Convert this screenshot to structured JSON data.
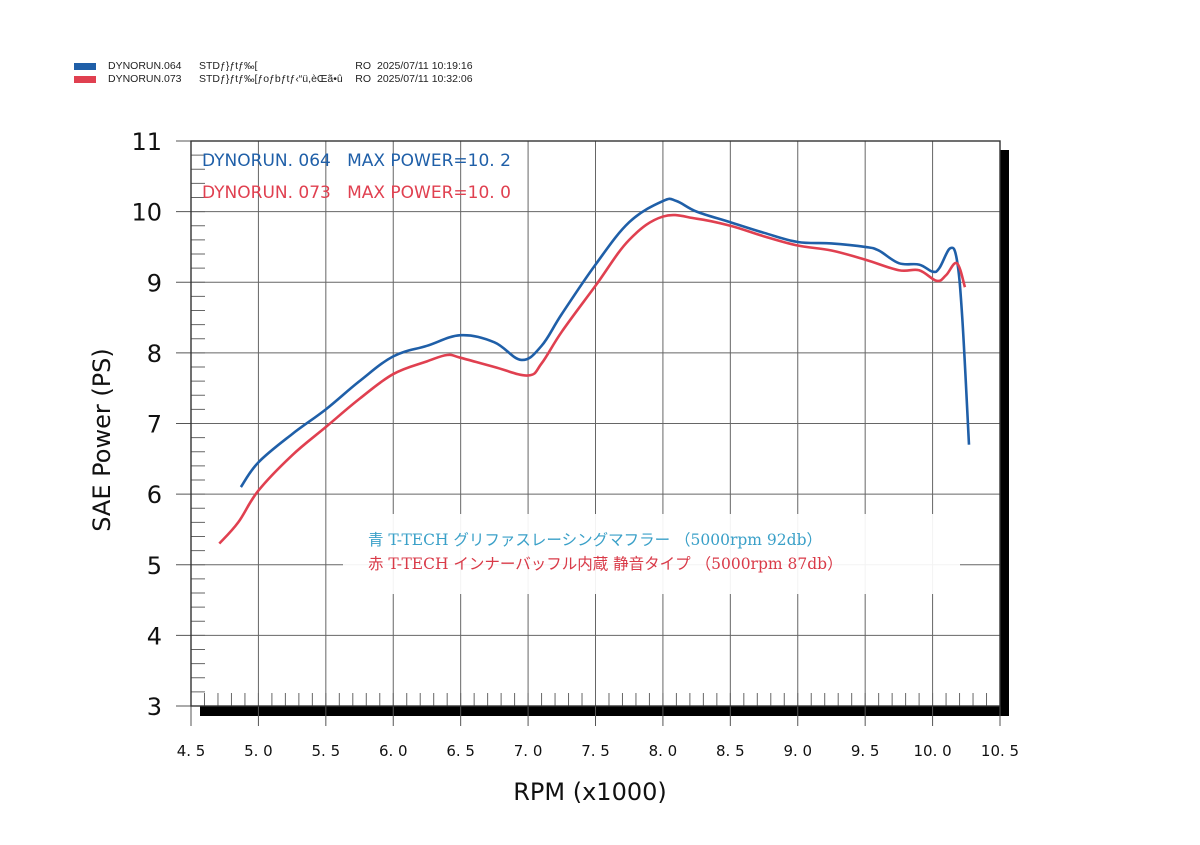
{
  "header_legend": [
    {
      "run": "DYNORUN.064",
      "description": "STDƒ}ƒtƒ‰[",
      "suffix": "RO",
      "timestamp": "2025/07/11 10:19:16",
      "color": "#1f5fa8"
    },
    {
      "run": "DYNORUN.073",
      "description": "STDƒ}ƒtƒ‰[ƒoƒbƒtƒ‹“ü,èŒã•û",
      "suffix": "RO",
      "timestamp": "2025/07/11 10:32:06",
      "color": "#e04050"
    }
  ],
  "annotations": {
    "run1": "DYNORUN. 064   MAX POWER=10. 2",
    "run2": "DYNORUN. 073   MAX POWER=10. 0"
  },
  "note": {
    "line1": "青  T-TECH グリファスレーシングマフラー （5000rpm 92db）",
    "line2": "赤  T-TECH インナーバッフル内蔵  静音タイプ （5000rpm 87db）"
  },
  "colors": {
    "blue": "#1f5fa8",
    "red": "#e04050",
    "note_blue": "#3aa0c8",
    "note_red": "#d93a48"
  },
  "chart_data": {
    "type": "line",
    "title": "",
    "xlabel": "RPM (x1000)",
    "ylabel": "SAE Power (PS)",
    "xlim": [
      4.5,
      10.5
    ],
    "ylim": [
      3,
      11
    ],
    "xticks": [
      "4.5",
      "5.0",
      "5.5",
      "6.0",
      "6.5",
      "7.0",
      "7.5",
      "8.0",
      "8.5",
      "9.0",
      "9.5",
      "10.0",
      "10.5"
    ],
    "yticks": [
      "3",
      "4",
      "5",
      "6",
      "7",
      "8",
      "9",
      "10",
      "11"
    ],
    "grid": true,
    "legend_position": "top-left",
    "series": [
      {
        "name": "DYNORUN.064 (MAX POWER=10.2)",
        "color": "#1f5fa8",
        "x": [
          4.87,
          5.0,
          5.25,
          5.5,
          5.75,
          6.0,
          6.25,
          6.5,
          6.75,
          6.95,
          7.1,
          7.25,
          7.5,
          7.75,
          8.0,
          8.1,
          8.25,
          8.5,
          8.75,
          9.0,
          9.25,
          9.5,
          9.6,
          9.75,
          9.9,
          10.0,
          10.05,
          10.13,
          10.18,
          10.22,
          10.27
        ],
        "y": [
          6.1,
          6.45,
          6.85,
          7.2,
          7.6,
          7.95,
          8.1,
          8.25,
          8.15,
          7.9,
          8.1,
          8.55,
          9.25,
          9.85,
          10.15,
          10.15,
          10.0,
          9.85,
          9.7,
          9.57,
          9.55,
          9.5,
          9.45,
          9.27,
          9.25,
          9.15,
          9.2,
          9.48,
          9.32,
          8.5,
          6.7
        ]
      },
      {
        "name": "DYNORUN.073 (MAX POWER=10.0)",
        "color": "#e04050",
        "x": [
          4.71,
          4.85,
          5.0,
          5.25,
          5.5,
          5.75,
          6.0,
          6.25,
          6.4,
          6.5,
          6.75,
          7.0,
          7.1,
          7.25,
          7.5,
          7.75,
          8.0,
          8.25,
          8.5,
          8.75,
          9.0,
          9.25,
          9.5,
          9.75,
          9.9,
          10.03,
          10.1,
          10.18,
          10.24
        ],
        "y": [
          5.3,
          5.6,
          6.05,
          6.55,
          6.95,
          7.35,
          7.7,
          7.88,
          7.97,
          7.93,
          7.8,
          7.68,
          7.85,
          8.3,
          8.95,
          9.6,
          9.93,
          9.9,
          9.8,
          9.65,
          9.52,
          9.45,
          9.32,
          9.17,
          9.17,
          9.02,
          9.1,
          9.27,
          8.93
        ]
      }
    ]
  }
}
